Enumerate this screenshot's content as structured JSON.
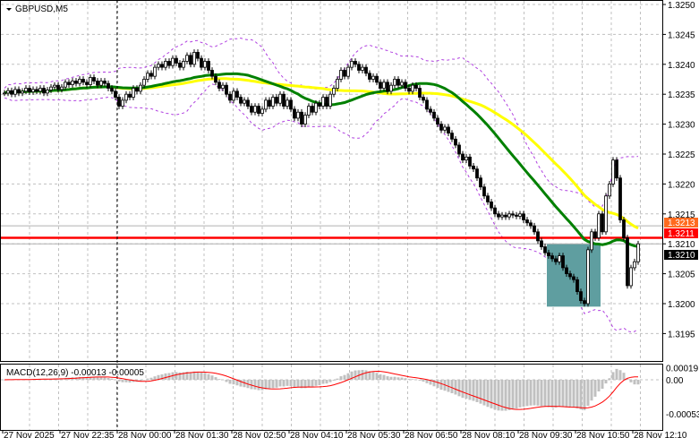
{
  "header": {
    "symbol_timeframe": "GBPUSD,M5"
  },
  "indicator_label": "MACD(12,26,9) -0.00013 -0.00005",
  "colors": {
    "fast_ma": "#008000",
    "slow_ma": "#ffff00",
    "bands": "#b040e0",
    "macd_hist": "#c0c0c0",
    "macd_signal": "#ff0000",
    "zone": "#5f9ea0",
    "level_red": "#ff0000",
    "level_orange": "#ff6a1f"
  },
  "markers": {
    "ask": "1.3213",
    "level": "1.3211",
    "bid": "1.3210"
  },
  "chart_data": {
    "type": "candlestick",
    "title": "GBPUSD,M5",
    "price_ticks": [
      "1.3250",
      "1.3245",
      "1.3240",
      "1.3235",
      "1.3230",
      "1.3225",
      "1.3220",
      "1.3215",
      "1.3210",
      "1.3205",
      "1.3200",
      "1.3195"
    ],
    "ylim": [
      1.31925,
      1.325
    ],
    "macd_ticks": [
      "0.00019",
      "0.00",
      "-0.00053"
    ],
    "time_labels": [
      "27 Nov 2025",
      "27 Nov 22:35",
      "28 Nov 00:00",
      "28 Nov 01:30",
      "28 Nov 02:50",
      "28 Nov 04:10",
      "28 Nov 05:30",
      "28 Nov 06:50",
      "28 Nov 08:10",
      "28 Nov 09:30",
      "28 Nov 10:50",
      "28 Nov 12:10"
    ],
    "grid": true,
    "horizontal_levels": [
      1.3213,
      1.3211,
      1.321
    ],
    "zone": {
      "price_top": 1.321,
      "price_bottom": 1.31995,
      "time_from": "28 Nov 09:50",
      "time_to": "28 Nov 10:50"
    },
    "close": [
      1.32352,
      1.32356,
      1.3235,
      1.32358,
      1.32352,
      1.32355,
      1.3236,
      1.32354,
      1.32358,
      1.32355,
      1.3236,
      1.32352,
      1.32357,
      1.32362,
      1.32365,
      1.32358,
      1.32362,
      1.3237,
      1.32366,
      1.32372,
      1.32368,
      1.32375,
      1.3237,
      1.32366,
      1.32378,
      1.32372,
      1.32365,
      1.32372,
      1.32368,
      1.3236,
      1.32355,
      1.32345,
      1.3233,
      1.3234,
      1.3235,
      1.32345,
      1.3236,
      1.32355,
      1.32365,
      1.32375,
      1.32385,
      1.3238,
      1.32395,
      1.324,
      1.32395,
      1.32405,
      1.32398,
      1.3241,
      1.32402,
      1.32395,
      1.32405,
      1.32415,
      1.324,
      1.3242,
      1.3241,
      1.32395,
      1.32405,
      1.3239,
      1.3238,
      1.3237,
      1.3236,
      1.32365,
      1.3235,
      1.3234,
      1.32355,
      1.32345,
      1.32335,
      1.3234,
      1.3233,
      1.3232,
      1.3233,
      1.32318,
      1.32325,
      1.3234,
      1.3233,
      1.32345,
      1.32335,
      1.3235,
      1.3233,
      1.3234,
      1.32325,
      1.3231,
      1.3232,
      1.323,
      1.32315,
      1.3233,
      1.3232,
      1.32335,
      1.3233,
      1.32345,
      1.3233,
      1.3235,
      1.3236,
      1.32375,
      1.3239,
      1.3238,
      1.32395,
      1.32405,
      1.324,
      1.3239,
      1.32395,
      1.32385,
      1.32375,
      1.3238,
      1.3237,
      1.3236,
      1.3237,
      1.32355,
      1.32365,
      1.32375,
      1.32365,
      1.3237,
      1.3236,
      1.32355,
      1.32365,
      1.3236,
      1.32345,
      1.3234,
      1.32325,
      1.3232,
      1.3231,
      1.323,
      1.3229,
      1.32295,
      1.32285,
      1.32275,
      1.32265,
      1.3225,
      1.3224,
      1.32245,
      1.3223,
      1.32225,
      1.3221,
      1.32195,
      1.3218,
      1.3217,
      1.3216,
      1.3215,
      1.32145,
      1.32148,
      1.32145,
      1.3215,
      1.32148,
      1.32146,
      1.3215,
      1.3214,
      1.32135,
      1.3213,
      1.3212,
      1.32105,
      1.32095,
      1.32085,
      1.3208,
      1.32075,
      1.3207,
      1.3208,
      1.3206,
      1.3205,
      1.32045,
      1.3204,
      1.3202,
      1.32005,
      1.32,
      1.3209,
      1.3212,
      1.3211,
      1.3215,
      1.3212,
      1.3218,
      1.322,
      1.3224,
      1.3221,
      1.3214,
      1.3211,
      1.3203,
      1.3206,
      1.3207,
      1.321
    ]
  }
}
